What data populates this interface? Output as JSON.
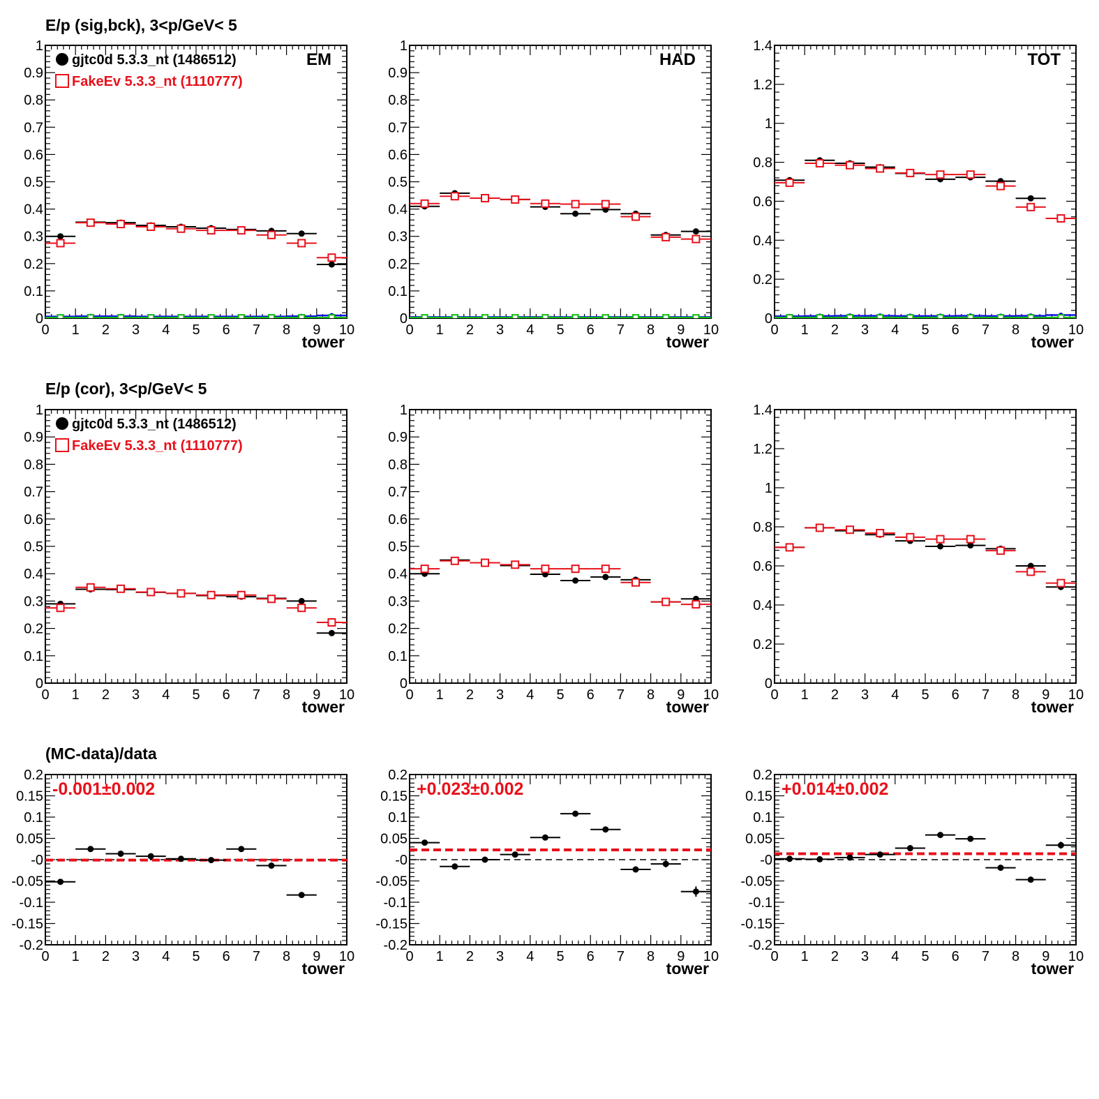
{
  "colors": {
    "data": "#000000",
    "mc": "#e8101a",
    "blue": "#1010e0",
    "green": "#10c010"
  },
  "row_titles": [
    "E/p (sig,bck),  3<p/GeV< 5",
    "E/p (cor),  3<p/GeV< 5",
    "(MC-data)/data"
  ],
  "legend": {
    "data": "gjtc0d 5.3.3_nt (1486512)",
    "mc": "FakeEv 5.3.3_nt (1110777)"
  },
  "x_axis": {
    "label": "tower",
    "ticks": [
      "0",
      "1",
      "2",
      "3",
      "4",
      "5",
      "6",
      "7",
      "8",
      "9",
      "10"
    ],
    "range": [
      0,
      10
    ]
  },
  "chart_data": [
    {
      "type": "scatter",
      "row": 0,
      "col": 0,
      "label": "EM",
      "ylim": [
        0,
        1
      ],
      "yticks": [
        "0",
        "0.1",
        "0.2",
        "0.3",
        "0.4",
        "0.5",
        "0.6",
        "0.7",
        "0.8",
        "0.9",
        "1"
      ],
      "xlabel": "tower",
      "series": [
        {
          "name": "gjtc0d 5.3.3_nt (1486512)",
          "role": "data",
          "marker": "filled-circle",
          "x": [
            0.5,
            1.5,
            2.5,
            3.5,
            4.5,
            5.5,
            6.5,
            7.5,
            8.5,
            9.5
          ],
          "y": [
            0.3,
            0.352,
            0.35,
            0.34,
            0.335,
            0.33,
            0.325,
            0.32,
            0.31,
            0.197
          ]
        },
        {
          "name": "FakeEv 5.3.3_nt (1110777)",
          "role": "mc",
          "marker": "open-square",
          "x": [
            0.5,
            1.5,
            2.5,
            3.5,
            4.5,
            5.5,
            6.5,
            7.5,
            8.5,
            9.5
          ],
          "y": [
            0.275,
            0.35,
            0.345,
            0.335,
            0.328,
            0.322,
            0.322,
            0.305,
            0.275,
            0.222
          ]
        },
        {
          "role": "blue",
          "marker": "filled-circle-small",
          "x": [
            0.5,
            1.5,
            2.5,
            3.5,
            4.5,
            5.5,
            6.5,
            7.5,
            8.5,
            9.5
          ],
          "y": [
            0.006,
            0.007,
            0.007,
            0.006,
            0.006,
            0.006,
            0.006,
            0.006,
            0.007,
            0.01
          ]
        },
        {
          "role": "green",
          "marker": "open-square-small",
          "x": [
            0.5,
            1.5,
            2.5,
            3.5,
            4.5,
            5.5,
            6.5,
            7.5,
            8.5,
            9.5
          ],
          "y": [
            0.002,
            0.002,
            0.002,
            0.002,
            0.002,
            0.002,
            0.002,
            0.002,
            0.002,
            0.002
          ]
        }
      ]
    },
    {
      "type": "scatter",
      "row": 0,
      "col": 1,
      "label": "HAD",
      "ylim": [
        0,
        1
      ],
      "yticks": [
        "0",
        "0.1",
        "0.2",
        "0.3",
        "0.4",
        "0.5",
        "0.6",
        "0.7",
        "0.8",
        "0.9",
        "1"
      ],
      "xlabel": "tower",
      "series": [
        {
          "role": "data",
          "marker": "filled-circle",
          "x": [
            0.5,
            1.5,
            2.5,
            3.5,
            4.5,
            5.5,
            6.5,
            7.5,
            8.5,
            9.5
          ],
          "y": [
            0.41,
            0.458,
            0.44,
            0.435,
            0.408,
            0.383,
            0.398,
            0.383,
            0.305,
            0.318
          ]
        },
        {
          "role": "mc",
          "marker": "open-square",
          "x": [
            0.5,
            1.5,
            2.5,
            3.5,
            4.5,
            5.5,
            6.5,
            7.5,
            8.5,
            9.5
          ],
          "y": [
            0.42,
            0.447,
            0.44,
            0.435,
            0.42,
            0.418,
            0.418,
            0.372,
            0.297,
            0.29
          ]
        },
        {
          "role": "blue",
          "marker": "filled-circle-small",
          "x": [
            0.5,
            1.5,
            2.5,
            3.5,
            4.5,
            5.5,
            6.5,
            7.5,
            8.5,
            9.5
          ],
          "y": [
            0.004,
            0.004,
            0.004,
            0.004,
            0.004,
            0.004,
            0.004,
            0.004,
            0.004,
            0.004
          ]
        },
        {
          "role": "green",
          "marker": "open-square-small",
          "x": [
            0.5,
            1.5,
            2.5,
            3.5,
            4.5,
            5.5,
            6.5,
            7.5,
            8.5,
            9.5
          ],
          "y": [
            0.002,
            0.002,
            0.002,
            0.002,
            0.002,
            0.002,
            0.002,
            0.002,
            0.002,
            0.002
          ]
        }
      ]
    },
    {
      "type": "scatter",
      "row": 0,
      "col": 2,
      "label": "TOT",
      "ylim": [
        0,
        1.4
      ],
      "yticks": [
        "0",
        "0.2",
        "0.4",
        "0.6",
        "0.8",
        "1",
        "1.2",
        "1.4"
      ],
      "xlabel": "tower",
      "series": [
        {
          "role": "data",
          "marker": "filled-circle",
          "x": [
            0.5,
            1.5,
            2.5,
            3.5,
            4.5,
            5.5,
            6.5,
            7.5,
            8.5,
            9.5
          ],
          "y": [
            0.708,
            0.81,
            0.795,
            0.775,
            0.743,
            0.713,
            0.723,
            0.703,
            0.615,
            0.512
          ]
        },
        {
          "role": "mc",
          "marker": "open-square",
          "x": [
            0.5,
            1.5,
            2.5,
            3.5,
            4.5,
            5.5,
            6.5,
            7.5,
            8.5,
            9.5
          ],
          "y": [
            0.695,
            0.795,
            0.785,
            0.768,
            0.745,
            0.737,
            0.737,
            0.678,
            0.57,
            0.512
          ]
        },
        {
          "role": "blue",
          "marker": "filled-circle-small",
          "x": [
            0.5,
            1.5,
            2.5,
            3.5,
            4.5,
            5.5,
            6.5,
            7.5,
            8.5,
            9.5
          ],
          "y": [
            0.01,
            0.011,
            0.012,
            0.012,
            0.011,
            0.011,
            0.012,
            0.011,
            0.012,
            0.016
          ]
        },
        {
          "role": "green",
          "marker": "open-square-small",
          "x": [
            0.5,
            1.5,
            2.5,
            3.5,
            4.5,
            5.5,
            6.5,
            7.5,
            8.5,
            9.5
          ],
          "y": [
            0.003,
            0.003,
            0.003,
            0.003,
            0.003,
            0.003,
            0.003,
            0.003,
            0.003,
            0.003
          ]
        }
      ]
    },
    {
      "type": "scatter",
      "row": 1,
      "col": 0,
      "ylim": [
        0,
        1
      ],
      "yticks": [
        "0",
        "0.1",
        "0.2",
        "0.3",
        "0.4",
        "0.5",
        "0.6",
        "0.7",
        "0.8",
        "0.9",
        "1"
      ],
      "xlabel": "tower",
      "series": [
        {
          "name": "gjtc0d 5.3.3_nt (1486512)",
          "role": "data",
          "marker": "filled-circle",
          "x": [
            0.5,
            1.5,
            2.5,
            3.5,
            4.5,
            5.5,
            6.5,
            7.5,
            8.5,
            9.5
          ],
          "y": [
            0.29,
            0.343,
            0.342,
            0.332,
            0.328,
            0.32,
            0.316,
            0.31,
            0.3,
            0.183
          ]
        },
        {
          "name": "FakeEv 5.3.3_nt (1110777)",
          "role": "mc",
          "marker": "open-square",
          "x": [
            0.5,
            1.5,
            2.5,
            3.5,
            4.5,
            5.5,
            6.5,
            7.5,
            8.5,
            9.5
          ],
          "y": [
            0.275,
            0.35,
            0.345,
            0.333,
            0.328,
            0.322,
            0.322,
            0.308,
            0.275,
            0.222
          ]
        }
      ]
    },
    {
      "type": "scatter",
      "row": 1,
      "col": 1,
      "ylim": [
        0,
        1
      ],
      "yticks": [
        "0",
        "0.1",
        "0.2",
        "0.3",
        "0.4",
        "0.5",
        "0.6",
        "0.7",
        "0.8",
        "0.9",
        "1"
      ],
      "xlabel": "tower",
      "series": [
        {
          "role": "data",
          "marker": "filled-circle",
          "x": [
            0.5,
            1.5,
            2.5,
            3.5,
            4.5,
            5.5,
            6.5,
            7.5,
            8.5,
            9.5
          ],
          "y": [
            0.4,
            0.45,
            0.44,
            0.43,
            0.398,
            0.375,
            0.388,
            0.378,
            0.297,
            0.308
          ]
        },
        {
          "role": "mc",
          "marker": "open-square",
          "x": [
            0.5,
            1.5,
            2.5,
            3.5,
            4.5,
            5.5,
            6.5,
            7.5,
            8.5,
            9.5
          ],
          "y": [
            0.418,
            0.447,
            0.44,
            0.433,
            0.418,
            0.418,
            0.418,
            0.368,
            0.297,
            0.288
          ]
        }
      ]
    },
    {
      "type": "scatter",
      "row": 1,
      "col": 2,
      "ylim": [
        0,
        1.4
      ],
      "yticks": [
        "0",
        "0.2",
        "0.4",
        "0.6",
        "0.8",
        "1",
        "1.2",
        "1.4"
      ],
      "xlabel": "tower",
      "series": [
        {
          "role": "data",
          "marker": "filled-circle",
          "x": [
            0.5,
            1.5,
            2.5,
            3.5,
            4.5,
            5.5,
            6.5,
            7.5,
            8.5,
            9.5
          ],
          "y": [
            0.695,
            0.795,
            0.78,
            0.76,
            0.728,
            0.7,
            0.705,
            0.688,
            0.6,
            0.492
          ]
        },
        {
          "role": "mc",
          "marker": "open-square",
          "x": [
            0.5,
            1.5,
            2.5,
            3.5,
            4.5,
            5.5,
            6.5,
            7.5,
            8.5,
            9.5
          ],
          "y": [
            0.695,
            0.795,
            0.785,
            0.768,
            0.747,
            0.737,
            0.737,
            0.678,
            0.57,
            0.512
          ]
        }
      ]
    },
    {
      "type": "scatter",
      "row": 2,
      "col": 0,
      "ylim": [
        -0.2,
        0.2
      ],
      "yticks": [
        "-0.2",
        "-0.15",
        "-0.1",
        "-0.05",
        "-0",
        "0.05",
        "0.1",
        "0.15",
        "0.2"
      ],
      "xlabel": "tower",
      "fit_text": "-0.001±0.002",
      "fit_value": -0.001,
      "series": [
        {
          "role": "data",
          "marker": "filled-circle",
          "x": [
            0.5,
            1.5,
            2.5,
            3.5,
            4.5,
            5.5,
            6.5,
            7.5,
            8.5
          ],
          "y": [
            -0.052,
            0.025,
            0.014,
            0.008,
            0.002,
            -0.001,
            0.025,
            -0.014,
            -0.083
          ],
          "yerr": [
            0.003,
            0.002,
            0.002,
            0.002,
            0.002,
            0.002,
            0.002,
            0.002,
            0.003
          ]
        }
      ]
    },
    {
      "type": "scatter",
      "row": 2,
      "col": 1,
      "ylim": [
        -0.2,
        0.2
      ],
      "yticks": [
        "-0.2",
        "-0.15",
        "-0.1",
        "-0.05",
        "-0",
        "0.05",
        "0.1",
        "0.15",
        "0.2"
      ],
      "xlabel": "tower",
      "fit_text": "+0.023±0.002",
      "fit_value": 0.023,
      "series": [
        {
          "role": "data",
          "marker": "filled-circle",
          "x": [
            0.5,
            1.5,
            2.5,
            3.5,
            4.5,
            5.5,
            6.5,
            7.5,
            8.5,
            9.5
          ],
          "y": [
            0.04,
            -0.016,
            0.0,
            0.012,
            0.052,
            0.108,
            0.071,
            -0.023,
            -0.01,
            -0.075
          ],
          "yerr": [
            0.003,
            0.003,
            0.003,
            0.003,
            0.003,
            0.004,
            0.003,
            0.004,
            0.008,
            0.012
          ]
        }
      ]
    },
    {
      "type": "scatter",
      "row": 2,
      "col": 2,
      "ylim": [
        -0.2,
        0.2
      ],
      "yticks": [
        "-0.2",
        "-0.15",
        "-0.1",
        "-0.05",
        "-0",
        "0.05",
        "0.1",
        "0.15",
        "0.2"
      ],
      "xlabel": "tower",
      "fit_text": "+0.014±0.002",
      "fit_value": 0.014,
      "series": [
        {
          "role": "data",
          "marker": "filled-circle",
          "x": [
            0.5,
            1.5,
            2.5,
            3.5,
            4.5,
            5.5,
            6.5,
            7.5,
            8.5,
            9.5
          ],
          "y": [
            0.002,
            0.001,
            0.005,
            0.012,
            0.027,
            0.058,
            0.049,
            -0.019,
            -0.047,
            0.034
          ],
          "yerr": [
            0.002,
            0.002,
            0.002,
            0.002,
            0.002,
            0.002,
            0.002,
            0.003,
            0.003,
            0.008
          ]
        }
      ]
    }
  ]
}
